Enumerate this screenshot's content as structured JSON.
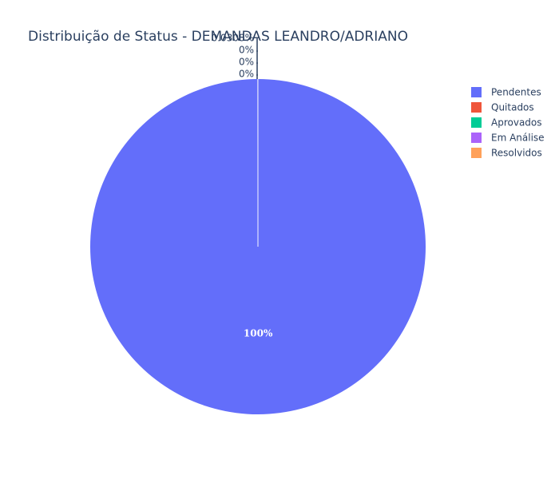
{
  "chart_data": {
    "type": "pie",
    "title": "Distribuição de Status - DEMANDAS LEANDRO/ADRIANO",
    "labels": [
      "Pendentes",
      "Quitados",
      "Aprovados",
      "Em Análise",
      "Resolvidos"
    ],
    "values": [
      99.9646,
      0.0308,
      0.002,
      0.002,
      0.001
    ],
    "colors": [
      "#636efa",
      "#ef553b",
      "#00cc96",
      "#ab63fa",
      "#ffa15a"
    ],
    "slice_text": [
      "100%",
      "0.0308%",
      "0%",
      "0%",
      "0%"
    ],
    "legend_position": "top-right",
    "start_angle": "12 o'clock",
    "direction": "clockwise"
  }
}
